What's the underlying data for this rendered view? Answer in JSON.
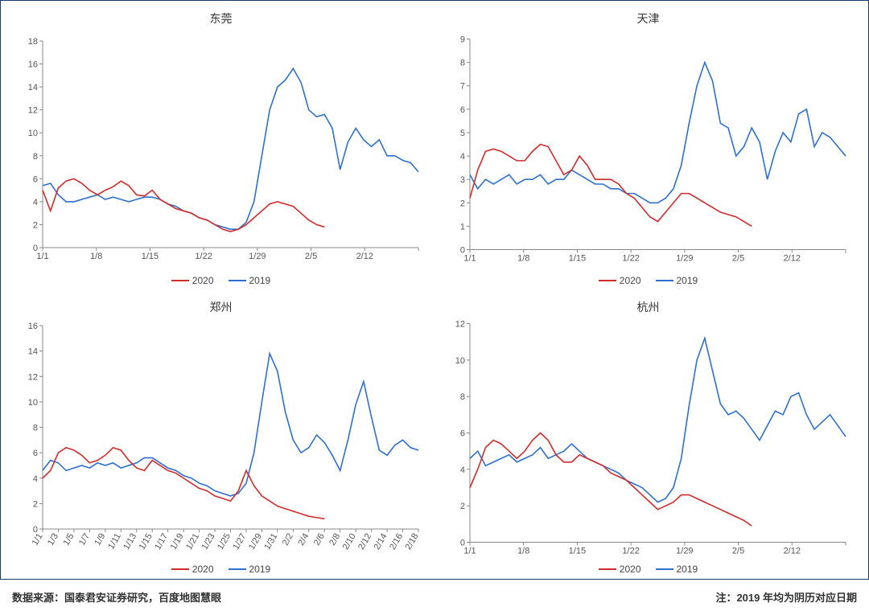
{
  "colors": {
    "series_2020": "#d22b2b",
    "series_2019": "#2e6fd0",
    "axis": "#888888",
    "text": "#333333",
    "border": "#1a3a6b",
    "background": "#ffffff"
  },
  "legend": {
    "s2020": "2020",
    "s2019": "2019"
  },
  "footnotes": {
    "left": "数据来源：国泰君安证券研究，百度地图慧眼",
    "right": "注：2019 年均为阴历对应日期"
  },
  "charts": {
    "dongguan": {
      "title": "东莞",
      "ylim": [
        0,
        18
      ],
      "ytick_step": 2,
      "xticks": [
        "1/1",
        "1/8",
        "1/15",
        "1/22",
        "1/29",
        "2/5",
        "2/12",
        ""
      ],
      "x_n": 49,
      "rotate_x": false,
      "series_2020": {
        "n": 37,
        "values": [
          5.0,
          3.2,
          5.2,
          5.8,
          6.0,
          5.6,
          5.0,
          4.6,
          5.0,
          5.3,
          5.8,
          5.4,
          4.6,
          4.5,
          5.0,
          4.2,
          3.8,
          3.4,
          3.2,
          3.0,
          2.6,
          2.4,
          2.0,
          1.6,
          1.4,
          1.6,
          2.0,
          2.6,
          3.2,
          3.8,
          4.0,
          3.8,
          3.6,
          3.0,
          2.4,
          2.0,
          1.8
        ]
      },
      "series_2019": {
        "n": 49,
        "values": [
          5.4,
          5.6,
          4.6,
          4.0,
          4.0,
          4.2,
          4.4,
          4.6,
          4.2,
          4.4,
          4.2,
          4.0,
          4.2,
          4.4,
          4.4,
          4.2,
          3.8,
          3.6,
          3.2,
          3.0,
          2.6,
          2.4,
          2.0,
          1.8,
          1.6,
          1.6,
          2.2,
          4.0,
          8.0,
          12.0,
          14.0,
          14.6,
          15.6,
          14.4,
          12.0,
          11.4,
          11.6,
          10.4,
          6.8,
          9.2,
          10.4,
          9.4,
          8.8,
          9.4,
          8.0,
          8.0,
          7.6,
          7.4,
          6.6
        ]
      }
    },
    "tianjin": {
      "title": "天津",
      "ylim": [
        0,
        9
      ],
      "ytick_step": 1,
      "xticks": [
        "1/1",
        "1/8",
        "1/15",
        "1/22",
        "1/29",
        "2/5",
        "2/12",
        ""
      ],
      "x_n": 49,
      "rotate_x": false,
      "series_2020": {
        "n": 37,
        "values": [
          2.2,
          3.4,
          4.2,
          4.3,
          4.2,
          4.0,
          3.8,
          3.8,
          4.2,
          4.5,
          4.4,
          3.8,
          3.2,
          3.4,
          4.0,
          3.6,
          3.0,
          3.0,
          3.0,
          2.8,
          2.4,
          2.2,
          1.8,
          1.4,
          1.2,
          1.6,
          2.0,
          2.4,
          2.4,
          2.2,
          2.0,
          1.8,
          1.6,
          1.5,
          1.4,
          1.2,
          1.0
        ]
      },
      "series_2019": {
        "n": 49,
        "values": [
          3.2,
          2.6,
          3.0,
          2.8,
          3.0,
          3.2,
          2.8,
          3.0,
          3.0,
          3.2,
          2.8,
          3.0,
          3.0,
          3.4,
          3.2,
          3.0,
          2.8,
          2.8,
          2.6,
          2.6,
          2.4,
          2.4,
          2.2,
          2.0,
          2.0,
          2.2,
          2.6,
          3.6,
          5.4,
          7.0,
          8.0,
          7.2,
          5.4,
          5.2,
          4.0,
          4.4,
          5.2,
          4.6,
          3.0,
          4.2,
          5.0,
          4.6,
          5.8,
          6.0,
          4.4,
          5.0,
          4.8,
          4.4,
          4.0
        ]
      }
    },
    "zhengzhou": {
      "title": "郑州",
      "ylim": [
        0,
        16
      ],
      "ytick_step": 2,
      "xticks": [
        "1/1",
        "1/3",
        "1/5",
        "1/7",
        "1/9",
        "1/11",
        "1/13",
        "1/15",
        "1/17",
        "1/19",
        "1/21",
        "1/23",
        "1/25",
        "1/27",
        "1/29",
        "1/31",
        "2/2",
        "2/4",
        "2/6",
        "2/8",
        "2/10",
        "2/12",
        "2/14",
        "2/16",
        "2/18"
      ],
      "x_n": 49,
      "rotate_x": true,
      "series_2020": {
        "n": 37,
        "values": [
          4.0,
          4.6,
          6.0,
          6.4,
          6.2,
          5.8,
          5.2,
          5.4,
          5.8,
          6.4,
          6.2,
          5.4,
          4.8,
          4.6,
          5.4,
          5.0,
          4.6,
          4.4,
          4.0,
          3.6,
          3.2,
          3.0,
          2.6,
          2.4,
          2.2,
          3.0,
          4.6,
          3.4,
          2.6,
          2.2,
          1.8,
          1.6,
          1.4,
          1.2,
          1.0,
          0.9,
          0.8
        ]
      },
      "series_2019": {
        "n": 49,
        "values": [
          4.6,
          5.4,
          5.2,
          4.6,
          4.8,
          5.0,
          4.8,
          5.2,
          5.0,
          5.2,
          4.8,
          5.0,
          5.2,
          5.6,
          5.6,
          5.2,
          4.8,
          4.6,
          4.2,
          4.0,
          3.6,
          3.4,
          3.0,
          2.8,
          2.6,
          2.8,
          3.6,
          6.0,
          10.0,
          13.8,
          12.4,
          9.2,
          7.0,
          6.0,
          6.4,
          7.4,
          6.8,
          5.8,
          4.6,
          7.0,
          9.8,
          11.6,
          8.8,
          6.2,
          5.8,
          6.6,
          7.0,
          6.4,
          6.2
        ]
      }
    },
    "hangzhou": {
      "title": "杭州",
      "ylim": [
        0,
        12
      ],
      "ytick_step": 2,
      "xticks": [
        "1/1",
        "1/8",
        "1/15",
        "1/22",
        "1/29",
        "2/5",
        "2/12",
        ""
      ],
      "x_n": 49,
      "rotate_x": false,
      "series_2020": {
        "n": 37,
        "values": [
          3.0,
          4.0,
          5.2,
          5.6,
          5.4,
          5.0,
          4.6,
          5.0,
          5.6,
          6.0,
          5.6,
          4.8,
          4.4,
          4.4,
          4.8,
          4.6,
          4.4,
          4.2,
          3.8,
          3.6,
          3.4,
          3.0,
          2.6,
          2.2,
          1.8,
          2.0,
          2.2,
          2.6,
          2.6,
          2.4,
          2.2,
          2.0,
          1.8,
          1.6,
          1.4,
          1.2,
          0.9
        ]
      },
      "series_2019": {
        "n": 49,
        "values": [
          4.6,
          5.0,
          4.2,
          4.4,
          4.6,
          4.8,
          4.4,
          4.6,
          4.8,
          5.2,
          4.6,
          4.8,
          5.0,
          5.4,
          5.0,
          4.6,
          4.4,
          4.2,
          4.0,
          3.8,
          3.4,
          3.2,
          3.0,
          2.6,
          2.2,
          2.4,
          3.0,
          4.6,
          7.5,
          10.0,
          11.2,
          9.4,
          7.6,
          7.0,
          7.2,
          6.8,
          6.2,
          5.6,
          6.4,
          7.2,
          7.0,
          8.0,
          8.2,
          7.0,
          6.2,
          6.6,
          7.0,
          6.4,
          5.8
        ]
      }
    }
  }
}
